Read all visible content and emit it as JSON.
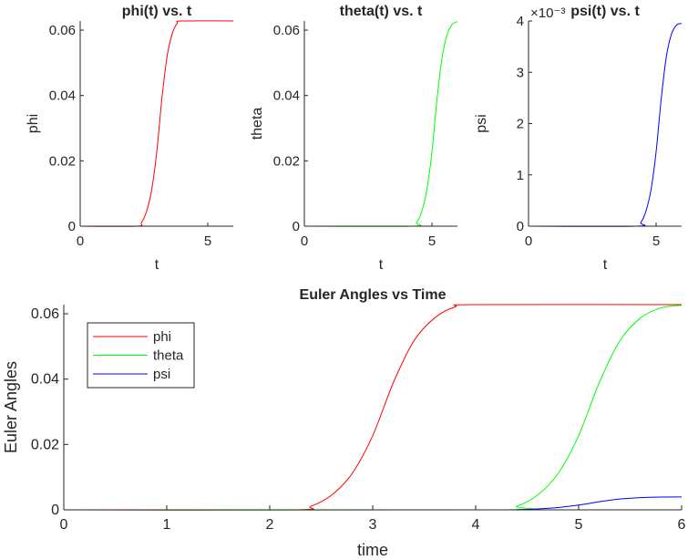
{
  "chart_data": [
    {
      "type": "line",
      "title": "phi(t) vs. t",
      "xlabel": "t",
      "ylabel": "phi",
      "xlim": [
        0,
        6
      ],
      "ylim": [
        0,
        0.0628
      ],
      "xticks": [
        0,
        5
      ],
      "yticks": [
        0,
        0.02,
        0.04,
        0.06
      ],
      "xtick_labels": [
        "0",
        "5"
      ],
      "ytick_labels": [
        "0",
        "0.02",
        "0.04",
        "0.06"
      ],
      "series": [
        {
          "color": "#ff0000",
          "x": [
            0,
            2.2,
            2.4,
            2.6,
            2.8,
            3.0,
            3.2,
            3.4,
            3.6,
            3.8,
            4.0,
            6.0
          ],
          "y": [
            0,
            0,
            0.0011,
            0.0045,
            0.0111,
            0.0227,
            0.0389,
            0.0517,
            0.0587,
            0.0621,
            0.0628,
            0.0628
          ]
        }
      ]
    },
    {
      "type": "line",
      "title": "theta(t) vs. t",
      "xlabel": "t",
      "ylabel": "theta",
      "xlim": [
        0,
        6
      ],
      "ylim": [
        0,
        0.0628
      ],
      "xticks": [
        0,
        5
      ],
      "yticks": [
        0,
        0.02,
        0.04,
        0.06
      ],
      "xtick_labels": [
        "0",
        "5"
      ],
      "ytick_labels": [
        "0",
        "0.02",
        "0.04",
        "0.06"
      ],
      "series": [
        {
          "color": "#00ff00",
          "x": [
            0,
            4.2,
            4.4,
            4.6,
            4.8,
            5.0,
            5.2,
            5.4,
            5.6,
            5.8,
            6.0
          ],
          "y": [
            0,
            0,
            0.0011,
            0.0045,
            0.0111,
            0.0227,
            0.0389,
            0.0517,
            0.0587,
            0.0618,
            0.0626
          ]
        }
      ]
    },
    {
      "type": "line",
      "title": "psi(t) vs. t",
      "xlabel": "t",
      "ylabel": "psi",
      "xlim": [
        0,
        6
      ],
      "ylim": [
        0,
        4
      ],
      "y_exponent": "×10⁻³",
      "xticks": [
        0,
        5
      ],
      "yticks": [
        0,
        1,
        2,
        3,
        4
      ],
      "xtick_labels": [
        "0",
        "5"
      ],
      "ytick_labels": [
        "0",
        "1",
        "2",
        "3",
        "4"
      ],
      "series": [
        {
          "color": "#0000ff",
          "x": [
            0,
            4.2,
            4.4,
            4.6,
            4.8,
            5.0,
            5.2,
            5.4,
            5.6,
            5.8,
            6.0
          ],
          "y": [
            0,
            0,
            0.07,
            0.29,
            0.71,
            1.45,
            2.48,
            3.3,
            3.74,
            3.92,
            3.95
          ]
        }
      ]
    },
    {
      "type": "line",
      "title": "Euler Angles vs Time",
      "xlabel": "time",
      "ylabel": "Euler Angles",
      "xlim": [
        0,
        6
      ],
      "ylim": [
        0,
        0.0628
      ],
      "xticks": [
        0,
        1,
        2,
        3,
        4,
        5,
        6
      ],
      "yticks": [
        0,
        0.02,
        0.04,
        0.06
      ],
      "xtick_labels": [
        "0",
        "1",
        "2",
        "3",
        "4",
        "5",
        "6"
      ],
      "ytick_labels": [
        "0",
        "0.02",
        "0.04",
        "0.06"
      ],
      "legend": "top-left",
      "series": [
        {
          "name": "phi",
          "color": "#ff0000",
          "x": [
            0,
            2.2,
            2.4,
            2.6,
            2.8,
            3.0,
            3.2,
            3.4,
            3.6,
            3.8,
            4.0,
            6.0
          ],
          "y": [
            0,
            0,
            0.0011,
            0.0045,
            0.0111,
            0.0227,
            0.0389,
            0.0517,
            0.0587,
            0.0621,
            0.0628,
            0.0628
          ]
        },
        {
          "name": "theta",
          "color": "#00ff00",
          "x": [
            0,
            4.2,
            4.4,
            4.6,
            4.8,
            5.0,
            5.2,
            5.4,
            5.6,
            5.8,
            6.0
          ],
          "y": [
            0,
            0,
            0.0011,
            0.0045,
            0.0111,
            0.0227,
            0.0389,
            0.0517,
            0.0587,
            0.0618,
            0.0626
          ]
        },
        {
          "name": "psi",
          "color": "#0000ff",
          "x": [
            0,
            4.2,
            4.4,
            4.6,
            4.8,
            5.0,
            5.2,
            5.4,
            5.6,
            5.8,
            6.0
          ],
          "y": [
            0,
            0,
            7e-05,
            0.00029,
            0.00071,
            0.00145,
            0.00248,
            0.0033,
            0.00374,
            0.00392,
            0.00395
          ]
        }
      ]
    }
  ]
}
